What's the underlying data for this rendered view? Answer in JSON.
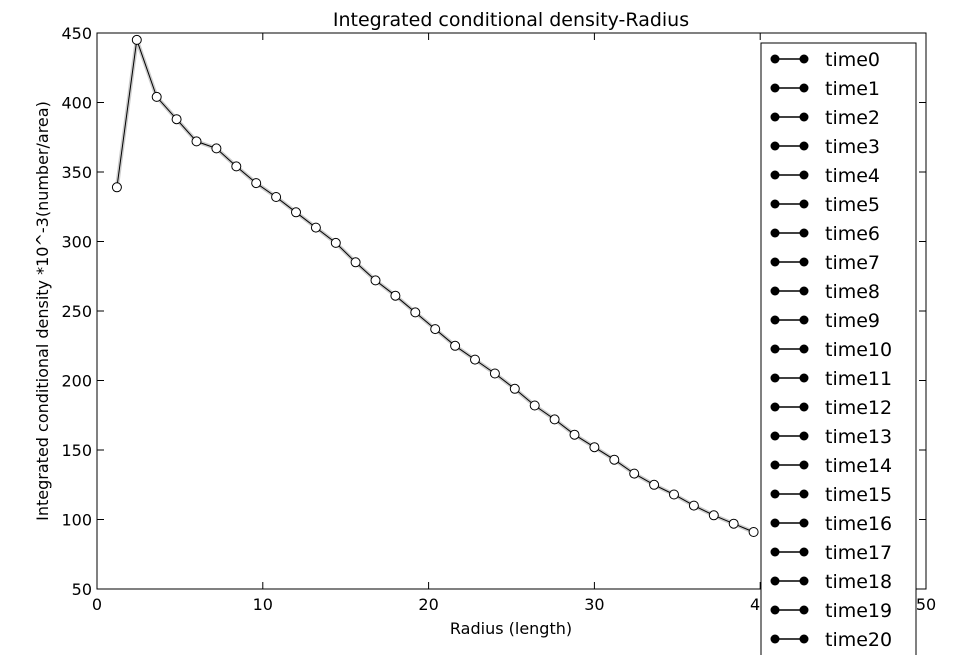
{
  "chart_data": {
    "type": "line",
    "title": "Integrated conditional density-Radius",
    "xlabel": "Radius (length)",
    "ylabel": "Integrated conditional density *10^-3(number/area)",
    "xlim": [
      0,
      50
    ],
    "ylim": [
      50,
      450
    ],
    "xticks": [
      0,
      10,
      20,
      30,
      40,
      50
    ],
    "yticks": [
      50,
      100,
      150,
      200,
      250,
      300,
      350,
      400,
      450
    ],
    "grid": false,
    "legend_position": "top-right",
    "legend": [
      "time0",
      "time1",
      "time2",
      "time3",
      "time4",
      "time5",
      "time6",
      "time7",
      "time8",
      "time9",
      "time10",
      "time11",
      "time12",
      "time13",
      "time14",
      "time15",
      "time16",
      "time17",
      "time18",
      "time19",
      "time20"
    ],
    "x": [
      1.2,
      2.4,
      3.6,
      4.8,
      6.0,
      7.2,
      8.4,
      9.6,
      10.8,
      12.0,
      13.2,
      14.4,
      15.6,
      16.8,
      18.0,
      19.2,
      20.4,
      21.6,
      22.8,
      24.0,
      25.2,
      26.4,
      27.6,
      28.8,
      30.0,
      31.2,
      32.4,
      33.6,
      34.8,
      36.0,
      37.2,
      38.4,
      39.6
    ],
    "series": [
      {
        "values": [
          339,
          445,
          404,
          388,
          372,
          367,
          354,
          342,
          332,
          321,
          310,
          299,
          285,
          272,
          261,
          249,
          237,
          225,
          215,
          205,
          194,
          182,
          172,
          161,
          152,
          143,
          133,
          125,
          118,
          110,
          103,
          97,
          91
        ]
      }
    ],
    "colors": {
      "line": "#000000",
      "marker_face": "#ffffff",
      "marker_edge": "#000000",
      "spread": "#cccccc",
      "legend_marker": "#000000"
    }
  }
}
